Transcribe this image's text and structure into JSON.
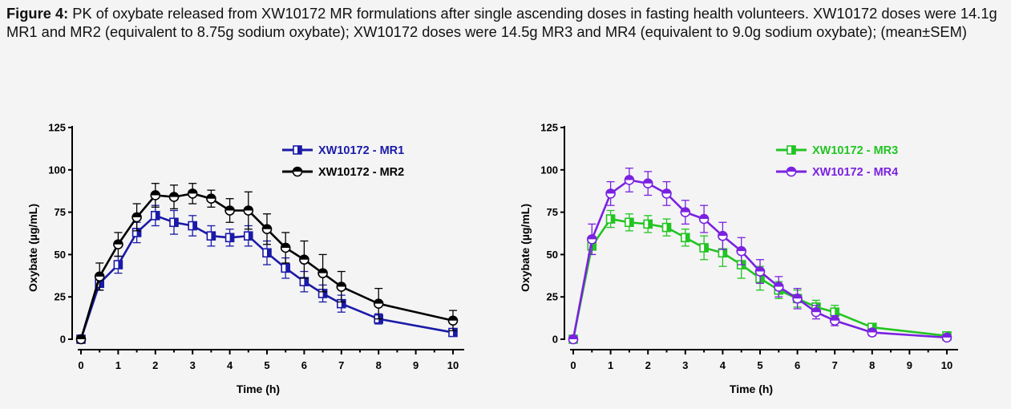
{
  "caption": {
    "label": "Figure  4:",
    "text": " PK of oxybate released from XW10172 MR formulations after single ascending doses in fasting health volunteers. XW10172 doses were 14.1g MR1 and MR2 (equivalent to 8.75g sodium oxybate); XW10172 doses were 14.5g MR3 and MR4 (equivalent to 9.0g sodium oxybate); (mean±SEM)"
  },
  "chart_data": [
    {
      "type": "line",
      "title": "",
      "xlabel": "Time (h)",
      "ylabel": "Oxybate (µg/mL)",
      "xlim": [
        0,
        10
      ],
      "ylim": [
        0,
        125
      ],
      "xticks": [
        0,
        1,
        2,
        3,
        4,
        5,
        6,
        7,
        8,
        9,
        10
      ],
      "yticks": [
        0,
        25,
        50,
        75,
        100,
        125
      ],
      "grid": false,
      "legend_position": "top-right",
      "series": [
        {
          "name": "XW10172 - MR1",
          "color": "#1a1aa8",
          "marker": "square-half",
          "x": [
            0,
            0.5,
            1,
            1.5,
            2,
            2.5,
            3,
            3.5,
            4,
            4.5,
            5,
            5.5,
            6,
            6.5,
            7,
            8,
            10
          ],
          "y": [
            0,
            33,
            44,
            63,
            73,
            69,
            67,
            61,
            60,
            61,
            51,
            42,
            34,
            27,
            21,
            12,
            4
          ],
          "err": [
            0,
            4,
            5,
            6,
            6,
            7,
            6,
            6,
            5,
            6,
            7,
            6,
            6,
            5,
            5,
            3,
            2
          ]
        },
        {
          "name": "XW10172 - MR2",
          "color": "#000000",
          "marker": "circle-half",
          "x": [
            0,
            0.5,
            1,
            1.5,
            2,
            2.5,
            3,
            3.5,
            4,
            4.5,
            5,
            5.5,
            6,
            6.5,
            7,
            8,
            10
          ],
          "y": [
            0,
            37,
            56,
            72,
            85,
            84,
            86,
            83,
            76,
            76,
            65,
            54,
            47,
            39,
            31,
            21,
            11
          ],
          "err": [
            0,
            8,
            7,
            8,
            7,
            7,
            6,
            5,
            7,
            11,
            9,
            9,
            11,
            11,
            9,
            9,
            6
          ]
        }
      ]
    },
    {
      "type": "line",
      "title": "",
      "xlabel": "Time (h)",
      "ylabel": "Oxybate (µg/mL)",
      "xlim": [
        0,
        10
      ],
      "ylim": [
        0,
        125
      ],
      "xticks": [
        0,
        1,
        2,
        3,
        4,
        5,
        6,
        7,
        8,
        9,
        10
      ],
      "yticks": [
        0,
        25,
        50,
        75,
        100,
        125
      ],
      "grid": false,
      "legend_position": "top-right",
      "series": [
        {
          "name": "XW10172 - MR3",
          "color": "#22c422",
          "marker": "square-half",
          "x": [
            0,
            0.5,
            1,
            1.5,
            2,
            2.5,
            3,
            3.5,
            4,
            4.5,
            5,
            5.5,
            6,
            6.5,
            7,
            8,
            10
          ],
          "y": [
            0,
            55,
            71,
            69,
            68,
            66,
            60,
            54,
            51,
            44,
            36,
            29,
            24,
            19,
            16,
            7,
            2
          ],
          "err": [
            0,
            5,
            5,
            5,
            5,
            5,
            5,
            7,
            8,
            8,
            7,
            5,
            5,
            4,
            4,
            2,
            2
          ]
        },
        {
          "name": "XW10172 - MR4",
          "color": "#7a22e0",
          "marker": "circle-half",
          "x": [
            0,
            0.5,
            1,
            1.5,
            2,
            2.5,
            3,
            3.5,
            4,
            4.5,
            5,
            5.5,
            6,
            6.5,
            7,
            8,
            10
          ],
          "y": [
            0,
            59,
            86,
            94,
            92,
            86,
            75,
            71,
            61,
            52,
            40,
            31,
            24,
            16,
            11,
            4,
            1
          ],
          "err": [
            0,
            9,
            7,
            7,
            7,
            7,
            7,
            8,
            8,
            8,
            7,
            6,
            6,
            4,
            3,
            2,
            1
          ]
        }
      ]
    }
  ]
}
